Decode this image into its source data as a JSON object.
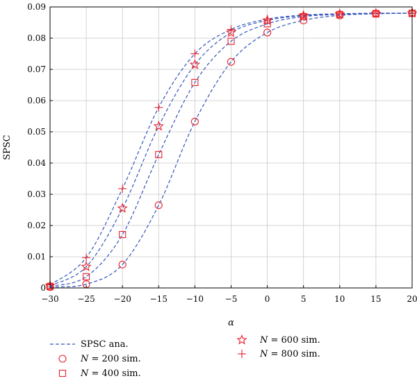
{
  "chart_data": {
    "type": "line",
    "title": "",
    "xlabel": "α",
    "ylabel": "SPSC",
    "xlim": [
      -30,
      20
    ],
    "ylim": [
      0,
      0.09
    ],
    "x_ticks": [
      -30,
      -25,
      -20,
      -15,
      -10,
      -5,
      0,
      5,
      10,
      15,
      20
    ],
    "y_ticks": [
      0,
      0.01,
      0.02,
      0.03,
      0.04,
      0.05,
      0.06,
      0.07,
      0.08,
      0.09
    ],
    "x_tick_labels": [
      "−30",
      "−25",
      "−20",
      "−15",
      "−10",
      "−5",
      "0",
      "5",
      "10",
      "15",
      "20"
    ],
    "y_tick_labels": [
      "0",
      "0.01",
      "0.02",
      "0.03",
      "0.04",
      "0.05",
      "0.06",
      "0.07",
      "0.08",
      "0.09"
    ],
    "grid": true,
    "x": [
      -30,
      -25,
      -20,
      -15,
      -10,
      -5,
      0,
      5,
      10,
      15,
      20
    ],
    "series": [
      {
        "name": "SPSC ana.",
        "style": "dashed-line",
        "color": "#3355bb",
        "values": [
          0.0003,
          0.0012,
          0.0075,
          0.0265,
          0.0533,
          0.0724,
          0.0818,
          0.0857,
          0.0873,
          0.0878,
          0.088
        ]
      },
      {
        "name": "SPSC ana.",
        "style": "dashed-line",
        "color": "#3355bb",
        "values": [
          0.0005,
          0.0036,
          0.0171,
          0.0427,
          0.0658,
          0.079,
          0.0846,
          0.0869,
          0.0876,
          0.0879,
          0.088
        ]
      },
      {
        "name": "SPSC ana.",
        "style": "dashed-line",
        "color": "#3355bb",
        "values": [
          0.0007,
          0.0068,
          0.0255,
          0.0518,
          0.0715,
          0.0818,
          0.0857,
          0.0872,
          0.0877,
          0.0879,
          0.088
        ]
      },
      {
        "name": "SPSC ana.",
        "style": "dashed-line",
        "color": "#3355bb",
        "values": [
          0.001,
          0.0097,
          0.0318,
          0.0578,
          0.075,
          0.0828,
          0.0861,
          0.0874,
          0.0878,
          0.088,
          0.088
        ]
      }
    ],
    "markers": [
      {
        "name": "N = 200 sim.",
        "marker": "circle",
        "color": "#e8202a",
        "values": [
          0.0003,
          0.0012,
          0.0075,
          0.0265,
          0.0533,
          0.0724,
          0.0818,
          0.0857,
          0.0873,
          0.0878,
          0.088
        ]
      },
      {
        "name": "N = 400 sim.",
        "marker": "square",
        "color": "#e8202a",
        "values": [
          0.0005,
          0.0036,
          0.0171,
          0.0427,
          0.0658,
          0.079,
          0.0846,
          0.0869,
          0.0876,
          0.0879,
          0.088
        ]
      },
      {
        "name": "N = 600 sim.",
        "marker": "star",
        "color": "#e8202a",
        "values": [
          0.0007,
          0.0068,
          0.0255,
          0.0518,
          0.0715,
          0.0818,
          0.0857,
          0.0872,
          0.0877,
          0.0879,
          0.088
        ]
      },
      {
        "name": "N = 800 sim.",
        "marker": "plus",
        "color": "#e8202a",
        "values": [
          0.001,
          0.0097,
          0.0318,
          0.0578,
          0.075,
          0.0828,
          0.0861,
          0.0874,
          0.0878,
          0.088,
          0.088
        ]
      }
    ],
    "legend": {
      "placement": "bottom",
      "entries": [
        {
          "label_prefix": "",
          "label_var": "",
          "label_suffix": "SPSC ana.",
          "symbol": "dashed-line"
        },
        {
          "label_prefix": "",
          "label_var": "N",
          "label_suffix": " = 200 sim.",
          "symbol": "circle"
        },
        {
          "label_prefix": "",
          "label_var": "N",
          "label_suffix": " = 400 sim.",
          "symbol": "square"
        },
        {
          "label_prefix": "",
          "label_var": "N",
          "label_suffix": " = 600 sim.",
          "symbol": "star"
        },
        {
          "label_prefix": "",
          "label_var": "N",
          "label_suffix": " = 800 sim.",
          "symbol": "plus"
        }
      ]
    }
  }
}
